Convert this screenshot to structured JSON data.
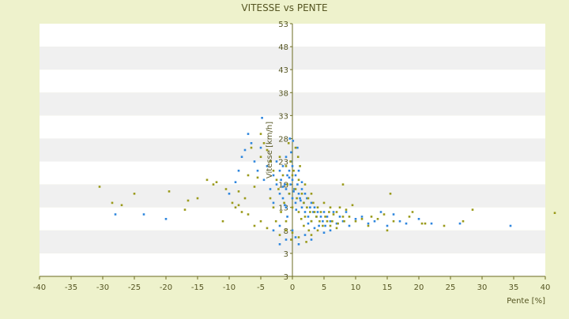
{
  "chart_data": {
    "type": "scatter",
    "title": "VITESSE vs PENTE",
    "xlabel": "Pente [%]",
    "ylabel": "Vitesse [km/h]",
    "xlim": [
      -40,
      40
    ],
    "ylim": [
      3,
      53
    ],
    "x_ticks": [
      "-40",
      "-35",
      "-30",
      "-25",
      "-20",
      "-15",
      "-10",
      "-5",
      "0",
      "5",
      "10",
      "15",
      "20",
      "25",
      "30",
      "35",
      "40"
    ],
    "y_ticks": [
      "3",
      "3",
      "8",
      "13",
      "18",
      "23",
      "28",
      "33",
      "38",
      "43",
      "48",
      "53"
    ],
    "y_tick_values": [
      3,
      3,
      8,
      13,
      18,
      23,
      28,
      33,
      38,
      43,
      48,
      53
    ],
    "grid": "horizontal bands",
    "colors": {
      "background": "#eef2cc",
      "band_light": "#ffffff",
      "band_dark": "#f0f0f0",
      "axis": "#6b6b20",
      "text": "#555522",
      "series_1": "#2e86de",
      "series_2": "#9a9a1a"
    },
    "series": [
      {
        "color": "#2e86de",
        "points": [
          [
            -28,
            11.5
          ],
          [
            -23.5,
            11.5
          ],
          [
            -20,
            10.5
          ],
          [
            -10,
            16
          ],
          [
            -9,
            18.5
          ],
          [
            -8.5,
            21
          ],
          [
            -8,
            24
          ],
          [
            -7.5,
            25.5
          ],
          [
            -7,
            29
          ],
          [
            -6.5,
            27
          ],
          [
            -6,
            23
          ],
          [
            -5.5,
            21
          ],
          [
            -5,
            26
          ],
          [
            -4.8,
            32.5
          ],
          [
            -4.5,
            19
          ],
          [
            -4,
            22
          ],
          [
            -3.5,
            17
          ],
          [
            -3,
            20
          ],
          [
            -3,
            14
          ],
          [
            -2.5,
            18
          ],
          [
            -2.5,
            23
          ],
          [
            -2,
            16
          ],
          [
            -2,
            21
          ],
          [
            -1.8,
            19
          ],
          [
            -1.5,
            15
          ],
          [
            -1.5,
            22
          ],
          [
            -1.2,
            18
          ],
          [
            -1,
            24
          ],
          [
            -1,
            17
          ],
          [
            -1,
            13
          ],
          [
            -0.8,
            20
          ],
          [
            -0.5,
            16
          ],
          [
            -0.5,
            21
          ],
          [
            -0.3,
            18
          ],
          [
            0,
            19
          ],
          [
            0,
            15
          ],
          [
            0,
            22
          ],
          [
            0.3,
            17
          ],
          [
            0.5,
            20
          ],
          [
            0.5,
            14
          ],
          [
            0.8,
            18
          ],
          [
            1,
            16
          ],
          [
            1,
            21
          ],
          [
            1.2,
            15
          ],
          [
            1.5,
            17
          ],
          [
            1.5,
            13
          ],
          [
            1.8,
            14
          ],
          [
            2,
            16
          ],
          [
            2,
            12
          ],
          [
            2.3,
            15
          ],
          [
            2.5,
            11
          ],
          [
            2.8,
            13
          ],
          [
            3,
            14
          ],
          [
            3,
            10
          ],
          [
            3.3,
            12
          ],
          [
            3.5,
            13
          ],
          [
            3.8,
            11
          ],
          [
            4,
            12
          ],
          [
            4.2,
            9
          ],
          [
            4.5,
            11
          ],
          [
            4.8,
            10
          ],
          [
            5,
            12
          ],
          [
            5.2,
            9
          ],
          [
            5.5,
            11
          ],
          [
            6,
            10
          ],
          [
            6.5,
            12
          ],
          [
            7,
            9.5
          ],
          [
            7.5,
            11
          ],
          [
            8,
            10
          ],
          [
            8.5,
            12
          ],
          [
            9,
            9
          ],
          [
            10,
            10.5
          ],
          [
            11,
            11
          ],
          [
            12,
            9.5
          ],
          [
            13,
            10
          ],
          [
            14,
            12
          ],
          [
            15,
            9
          ],
          [
            16,
            11.5
          ],
          [
            17,
            10
          ],
          [
            18,
            9.5
          ],
          [
            20,
            10.5
          ],
          [
            22,
            9.5
          ],
          [
            26.5,
            9.5
          ],
          [
            34.5,
            9
          ],
          [
            -1,
            6
          ],
          [
            0,
            8
          ],
          [
            1,
            5
          ],
          [
            2,
            7
          ],
          [
            3,
            6
          ],
          [
            -2,
            5
          ],
          [
            0.5,
            6.5
          ],
          [
            -0.5,
            19.5
          ],
          [
            1.5,
            18.5
          ],
          [
            -1.5,
            17.5
          ],
          [
            0.2,
            16.5
          ],
          [
            -0.2,
            23
          ],
          [
            -0.2,
            25
          ],
          [
            0.8,
            26
          ],
          [
            -3,
            8
          ],
          [
            3.5,
            8.5
          ],
          [
            5,
            7.5
          ],
          [
            6,
            8
          ],
          [
            -2,
            9
          ],
          [
            2.5,
            9.5
          ],
          [
            -0.8,
            11
          ],
          [
            0.6,
            12.5
          ],
          [
            -1.2,
            13.5
          ],
          [
            1.3,
            14.5
          ],
          [
            -0.4,
            28
          ],
          [
            0.1,
            27.5
          ]
        ]
      },
      {
        "color": "#9a9a1a",
        "points": [
          [
            -30.5,
            17.5
          ],
          [
            -28.5,
            14
          ],
          [
            -27,
            13.5
          ],
          [
            -25,
            16
          ],
          [
            -19.5,
            16.5
          ],
          [
            -17,
            12.5
          ],
          [
            -16.5,
            14.5
          ],
          [
            -15,
            15
          ],
          [
            -13.5,
            19
          ],
          [
            -12.5,
            18
          ],
          [
            -12,
            18.5
          ],
          [
            -11,
            10
          ],
          [
            -10.5,
            17
          ],
          [
            -9.5,
            14
          ],
          [
            -9,
            13
          ],
          [
            -8.5,
            16.5
          ],
          [
            -8,
            12
          ],
          [
            -7.5,
            15
          ],
          [
            -7,
            20
          ],
          [
            -6.5,
            26
          ],
          [
            -6,
            17.5
          ],
          [
            -5.5,
            19.5
          ],
          [
            -5,
            24
          ],
          [
            -5,
            29
          ],
          [
            -4.5,
            27
          ],
          [
            -4,
            25.5
          ],
          [
            -3.5,
            23
          ],
          [
            -3.5,
            15
          ],
          [
            -3,
            21
          ],
          [
            -3,
            13
          ],
          [
            -2.5,
            19
          ],
          [
            -2.2,
            17
          ],
          [
            -2,
            24
          ],
          [
            -1.8,
            12
          ],
          [
            -1.5,
            20
          ],
          [
            -1.3,
            14
          ],
          [
            -1,
            22
          ],
          [
            -1,
            10
          ],
          [
            -0.8,
            18
          ],
          [
            -0.5,
            16
          ],
          [
            -0.3,
            23
          ],
          [
            0,
            20
          ],
          [
            0,
            13
          ],
          [
            0.2,
            21
          ],
          [
            0.5,
            17
          ],
          [
            0.7,
            15
          ],
          [
            1,
            19
          ],
          [
            1,
            12
          ],
          [
            1.2,
            22
          ],
          [
            1.5,
            16
          ],
          [
            1.8,
            14
          ],
          [
            2,
            18
          ],
          [
            2,
            11
          ],
          [
            2.3,
            13
          ],
          [
            2.5,
            15
          ],
          [
            2.8,
            12
          ],
          [
            3,
            16
          ],
          [
            3,
            10
          ],
          [
            3.3,
            14
          ],
          [
            3.5,
            12
          ],
          [
            3.8,
            11
          ],
          [
            4,
            13
          ],
          [
            4.3,
            10
          ],
          [
            4.5,
            12
          ],
          [
            4.8,
            9
          ],
          [
            5,
            14
          ],
          [
            5.2,
            11
          ],
          [
            5.5,
            10
          ],
          [
            5.8,
            12
          ],
          [
            6,
            13
          ],
          [
            6.3,
            10
          ],
          [
            6.5,
            11.5
          ],
          [
            7,
            12
          ],
          [
            7.2,
            9.5
          ],
          [
            7.5,
            13
          ],
          [
            8,
            11
          ],
          [
            8.2,
            10
          ],
          [
            8.5,
            12.5
          ],
          [
            9,
            11
          ],
          [
            9.5,
            13.5
          ],
          [
            10,
            10
          ],
          [
            11,
            10.5
          ],
          [
            12,
            9
          ],
          [
            12.5,
            11
          ],
          [
            13.5,
            10.5
          ],
          [
            14.5,
            11.5
          ],
          [
            15,
            8
          ],
          [
            15.5,
            16
          ],
          [
            16,
            10
          ],
          [
            18.5,
            11
          ],
          [
            19,
            12
          ],
          [
            20.5,
            9.5
          ],
          [
            21,
            9.5
          ],
          [
            24,
            9
          ],
          [
            27,
            10
          ],
          [
            28.5,
            12.5
          ],
          [
            41.5,
            11.8
          ],
          [
            -2,
            7
          ],
          [
            0,
            7.5
          ],
          [
            1,
            6.5
          ],
          [
            2.2,
            5.5
          ],
          [
            4,
            8
          ],
          [
            -4,
            8.5
          ],
          [
            8,
            18
          ],
          [
            0.5,
            26
          ],
          [
            -0.6,
            27
          ],
          [
            -1,
            8
          ],
          [
            3,
            7
          ],
          [
            6,
            9
          ],
          [
            7,
            8.5
          ],
          [
            -7,
            11.5
          ],
          [
            -8.5,
            13.5
          ],
          [
            -6,
            9
          ],
          [
            -5,
            10
          ],
          [
            1.8,
            9
          ],
          [
            2.6,
            8
          ],
          [
            -0.2,
            6
          ],
          [
            1.4,
            10.5
          ],
          [
            -2.6,
            10
          ],
          [
            0.9,
            24
          ]
        ]
      }
    ]
  }
}
